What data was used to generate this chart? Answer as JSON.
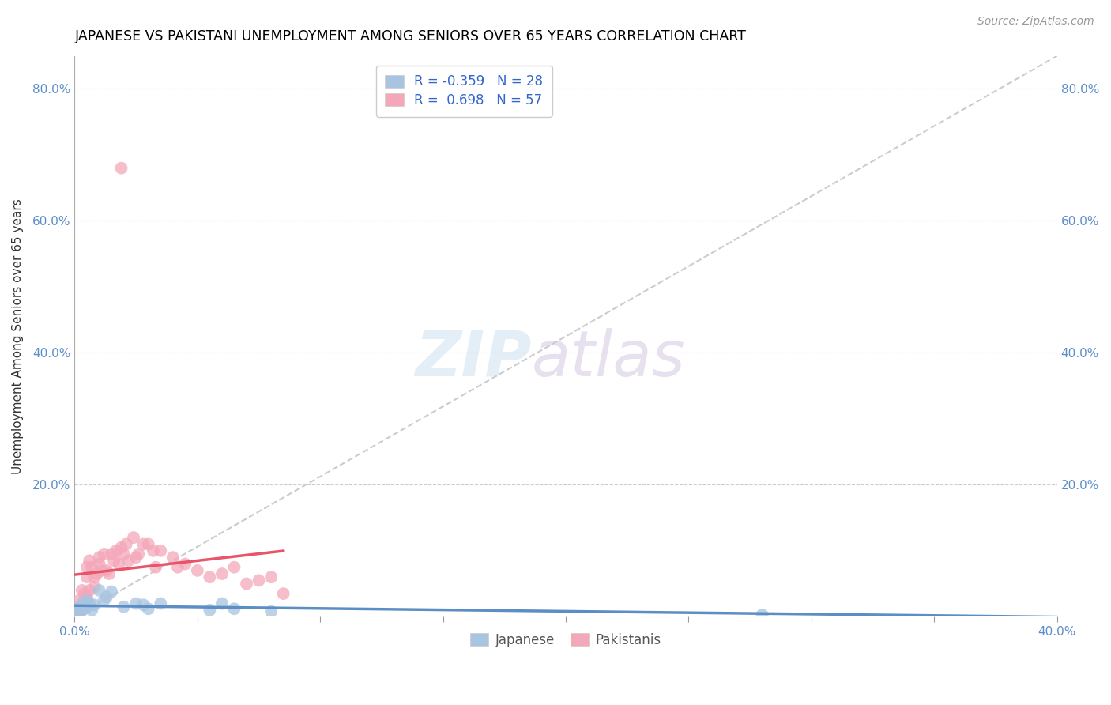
{
  "title": "JAPANESE VS PAKISTANI UNEMPLOYMENT AMONG SENIORS OVER 65 YEARS CORRELATION CHART",
  "source": "Source: ZipAtlas.com",
  "ylabel": "Unemployment Among Seniors over 65 years",
  "xlim": [
    0.0,
    0.4
  ],
  "ylim": [
    0.0,
    0.85
  ],
  "xticks": [
    0.0,
    0.05,
    0.1,
    0.15,
    0.2,
    0.25,
    0.3,
    0.35,
    0.4
  ],
  "xticklabels": [
    "0.0%",
    "",
    "",
    "",
    "",
    "",
    "",
    "",
    "40.0%"
  ],
  "yticks": [
    0.0,
    0.2,
    0.4,
    0.6,
    0.8
  ],
  "yticklabels": [
    "",
    "20.0%",
    "40.0%",
    "60.0%",
    "80.0%"
  ],
  "legend_R_japanese": "-0.359",
  "legend_N_japanese": "28",
  "legend_R_pakistani": "0.698",
  "legend_N_pakistani": "57",
  "japanese_color": "#a8c4e0",
  "pakistani_color": "#f4a7b9",
  "japanese_line_color": "#5b8ec4",
  "pakistani_line_color": "#e8546a",
  "diagonal_color": "#cccccc",
  "japanese_x": [
    0.0,
    0.0,
    0.001,
    0.001,
    0.002,
    0.002,
    0.003,
    0.003,
    0.004,
    0.005,
    0.005,
    0.006,
    0.007,
    0.008,
    0.01,
    0.012,
    0.013,
    0.015,
    0.02,
    0.025,
    0.028,
    0.03,
    0.035,
    0.055,
    0.06,
    0.065,
    0.08,
    0.28
  ],
  "japanese_y": [
    0.0,
    0.005,
    0.003,
    0.01,
    0.005,
    0.015,
    0.01,
    0.02,
    0.012,
    0.015,
    0.025,
    0.02,
    0.01,
    0.018,
    0.04,
    0.025,
    0.03,
    0.038,
    0.015,
    0.02,
    0.018,
    0.012,
    0.02,
    0.01,
    0.02,
    0.012,
    0.008,
    0.003
  ],
  "pakistani_x": [
    0.0,
    0.0,
    0.0,
    0.001,
    0.001,
    0.001,
    0.002,
    0.002,
    0.002,
    0.003,
    0.003,
    0.003,
    0.004,
    0.004,
    0.005,
    0.005,
    0.005,
    0.006,
    0.006,
    0.007,
    0.008,
    0.008,
    0.009,
    0.01,
    0.01,
    0.011,
    0.012,
    0.013,
    0.014,
    0.015,
    0.016,
    0.017,
    0.018,
    0.019,
    0.02,
    0.021,
    0.022,
    0.024,
    0.025,
    0.026,
    0.028,
    0.03,
    0.032,
    0.033,
    0.035,
    0.04,
    0.042,
    0.045,
    0.05,
    0.055,
    0.06,
    0.065,
    0.07,
    0.075,
    0.08,
    0.085,
    0.019
  ],
  "pakistani_y": [
    0.0,
    0.005,
    0.01,
    0.003,
    0.005,
    0.01,
    0.005,
    0.012,
    0.025,
    0.01,
    0.015,
    0.04,
    0.02,
    0.035,
    0.03,
    0.06,
    0.075,
    0.04,
    0.085,
    0.075,
    0.045,
    0.06,
    0.065,
    0.08,
    0.09,
    0.07,
    0.095,
    0.07,
    0.065,
    0.095,
    0.085,
    0.1,
    0.08,
    0.105,
    0.095,
    0.11,
    0.085,
    0.12,
    0.09,
    0.095,
    0.11,
    0.11,
    0.1,
    0.075,
    0.1,
    0.09,
    0.075,
    0.08,
    0.07,
    0.06,
    0.065,
    0.075,
    0.05,
    0.055,
    0.06,
    0.035,
    0.68
  ],
  "pk_trend_x0": 0.0,
  "pk_trend_x1": 0.085,
  "jp_trend_x0": 0.0,
  "jp_trend_x1": 0.4
}
